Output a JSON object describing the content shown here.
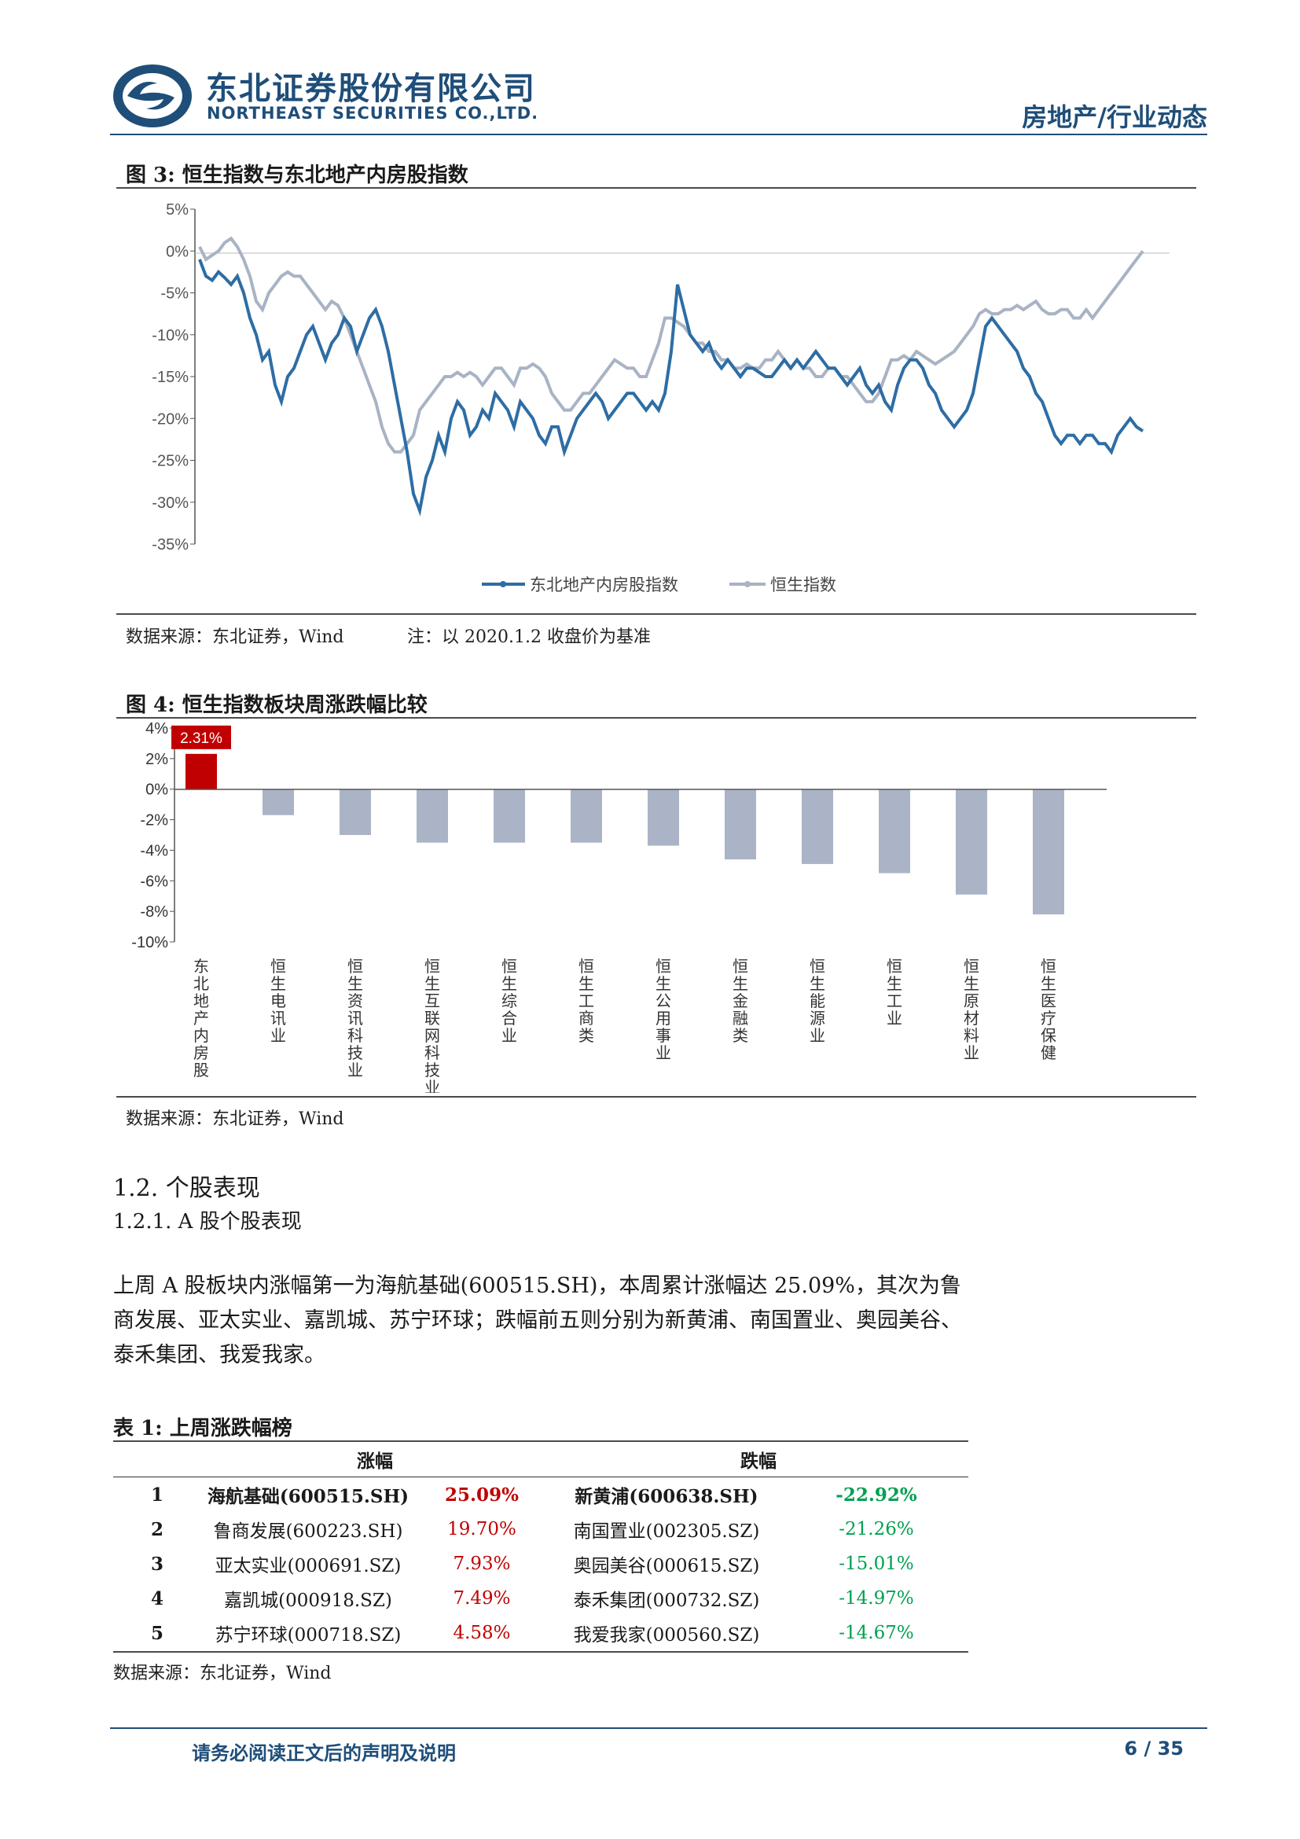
{
  "header": {
    "company_cn": "东北证券股份有限公司",
    "company_en": "NORTHEAST SECURITIES CO.,LTD.",
    "category": "房地产/行业动态",
    "brand_color": "#1f4e79"
  },
  "figure3": {
    "title": "图 3:  恒生指数与东北地产内房股指数",
    "source": "数据来源：东北证券，Wind",
    "note": "注：以 2020.1.2 收盘价为基准"
  },
  "figure4": {
    "title": "图 4:  恒生指数板块周涨跌幅比较",
    "source": "数据来源：东北证券，Wind"
  },
  "chart_data": [
    {
      "type": "line",
      "y_ticks": [
        "5%",
        "0%",
        "-5%",
        "-10%",
        "-15%",
        "-20%",
        "-25%",
        "-30%",
        "-35%"
      ],
      "ylim": [
        -35,
        5
      ],
      "legend_position": "bottom",
      "series": [
        {
          "name": "东北地产内房股指数",
          "color": "#2e6da4",
          "values": [
            -1,
            -3,
            -3.5,
            -2.5,
            -3.2,
            -4,
            -3,
            -5,
            -8,
            -10,
            -13,
            -12,
            -16,
            -18,
            -15,
            -14,
            -12,
            -10,
            -9,
            -11,
            -13,
            -11,
            -10,
            -8,
            -9,
            -12,
            -10,
            -8,
            -7,
            -9,
            -12,
            -16,
            -20,
            -24,
            -29,
            -31,
            -27,
            -25,
            -22,
            -24,
            -20,
            -18,
            -19,
            -22,
            -21,
            -19,
            -20,
            -17,
            -18,
            -19,
            -21,
            -18,
            -19,
            -20,
            -22,
            -23,
            -21,
            -21,
            -24,
            -22,
            -20,
            -19,
            -18,
            -17,
            -18,
            -20,
            -19,
            -18,
            -17,
            -17,
            -18,
            -19,
            -18,
            -19,
            -17,
            -12,
            -4,
            -7,
            -10,
            -11,
            -12,
            -11,
            -13,
            -14,
            -13,
            -14,
            -15,
            -14,
            -14,
            -14.5,
            -15,
            -15,
            -14,
            -13,
            -14,
            -13,
            -14,
            -13,
            -12,
            -13,
            -14,
            -14,
            -15,
            -16,
            -15,
            -14,
            -16,
            -17,
            -16,
            -18,
            -19,
            -16,
            -14,
            -13,
            -13,
            -14,
            -16,
            -17,
            -19,
            -20,
            -21,
            -20,
            -19,
            -17,
            -13,
            -9,
            -8,
            -9,
            -10,
            -11,
            -12,
            -14,
            -15,
            -17,
            -18,
            -20,
            -22,
            -23,
            -22,
            -22,
            -23,
            -22,
            -22,
            -23,
            -23,
            -24,
            -22,
            -21,
            -20,
            -21,
            -21.5
          ]
        },
        {
          "name": "恒生指数",
          "color": "#a8b3c4",
          "values": [
            0.5,
            -1,
            -0.5,
            0,
            1,
            1.5,
            0.5,
            -1,
            -3,
            -6,
            -7,
            -5,
            -4,
            -3,
            -2.5,
            -3,
            -3,
            -4,
            -5,
            -6,
            -7,
            -6,
            -6.5,
            -8,
            -10,
            -12,
            -14,
            -16,
            -18,
            -21,
            -23,
            -24,
            -24,
            -23,
            -22,
            -19,
            -18,
            -17,
            -16,
            -15,
            -15,
            -14.5,
            -15,
            -14.5,
            -15,
            -16,
            -15,
            -14,
            -14,
            -15,
            -16,
            -14,
            -14,
            -13.5,
            -14,
            -15,
            -17,
            -18,
            -19,
            -19,
            -18,
            -17,
            -17,
            -16,
            -15,
            -14,
            -13,
            -13.5,
            -14,
            -14,
            -15,
            -15,
            -13,
            -11,
            -8,
            -8,
            -8.5,
            -9,
            -10,
            -11,
            -11,
            -12,
            -12,
            -13,
            -13,
            -14,
            -14,
            -13.5,
            -14,
            -14,
            -13,
            -13,
            -12,
            -13,
            -14,
            -13,
            -14,
            -14,
            -15,
            -15,
            -14,
            -14,
            -15,
            -15,
            -16,
            -17,
            -18,
            -18,
            -17,
            -15,
            -13,
            -13,
            -12.5,
            -13,
            -12,
            -12.5,
            -13,
            -13.5,
            -13,
            -12.5,
            -12,
            -11,
            -10,
            -9,
            -7.5,
            -7,
            -7.5,
            -7.5,
            -7,
            -7,
            -6.5,
            -7,
            -6.5,
            -6,
            -7,
            -7.5,
            -7.5,
            -7,
            -7,
            -8,
            -8,
            -7,
            -8,
            -7,
            -6,
            -5,
            -4,
            -3,
            -2,
            -1,
            0
          ]
        }
      ]
    },
    {
      "type": "bar",
      "ylim": [
        -10,
        4
      ],
      "y_ticks": [
        "4%",
        "2%",
        "0%",
        "-2%",
        "-4%",
        "-6%",
        "-8%",
        "-10%"
      ],
      "categories": [
        "东北地产内房股",
        "恒生电讯业",
        "恒生资讯科技业",
        "恒生互联网科技业",
        "恒生综合业",
        "恒生工商类",
        "恒生公用事业",
        "恒生金融类",
        "恒生能源业",
        "恒生工业",
        "恒生原材料业",
        "恒生医疗保健"
      ],
      "values": [
        2.31,
        -1.7,
        -3.0,
        -3.5,
        -3.5,
        -3.5,
        -3.7,
        -4.6,
        -4.9,
        -5.5,
        -6.9,
        -8.2
      ],
      "data_label": "2.31%",
      "highlight_color": "#c00000",
      "bar_color": "#aab4c6"
    }
  ],
  "section": {
    "h2": "1.2.  个股表现",
    "h3": "1.2.1.   A 股个股表现",
    "paragraph": "上周 A 股板块内涨幅第一为海航基础(600515.SH)，本周累计涨幅达 25.09%，其次为鲁商发展、亚太实业、嘉凯城、苏宁环球；跌幅前五则分别为新黄浦、南国置业、奥园美谷、泰禾集团、我爱我家。"
  },
  "table1": {
    "title": "表 1:  上周涨跌幅榜",
    "headers": [
      "涨幅",
      "跌幅"
    ],
    "rows": [
      [
        "1",
        "海航基础(600515.SH)",
        "25.09%",
        "新黄浦(600638.SH)",
        "-22.92%"
      ],
      [
        "2",
        "鲁商发展(600223.SH)",
        "19.70%",
        "南国置业(002305.SZ)",
        "-21.26%"
      ],
      [
        "3",
        "亚太实业(000691.SZ)",
        "7.93%",
        "奥园美谷(000615.SZ)",
        "-15.01%"
      ],
      [
        "4",
        "嘉凯城(000918.SZ)",
        "7.49%",
        "泰禾集团(000732.SZ)",
        "-14.97%"
      ],
      [
        "5",
        "苏宁环球(000718.SZ)",
        "4.58%",
        "我爱我家(000560.SZ)",
        "-14.67%"
      ]
    ],
    "source": "数据来源：东北证券，Wind"
  },
  "footer": {
    "disclaimer": "请务必阅读正文后的声明及说明",
    "page": "6 / 35"
  }
}
